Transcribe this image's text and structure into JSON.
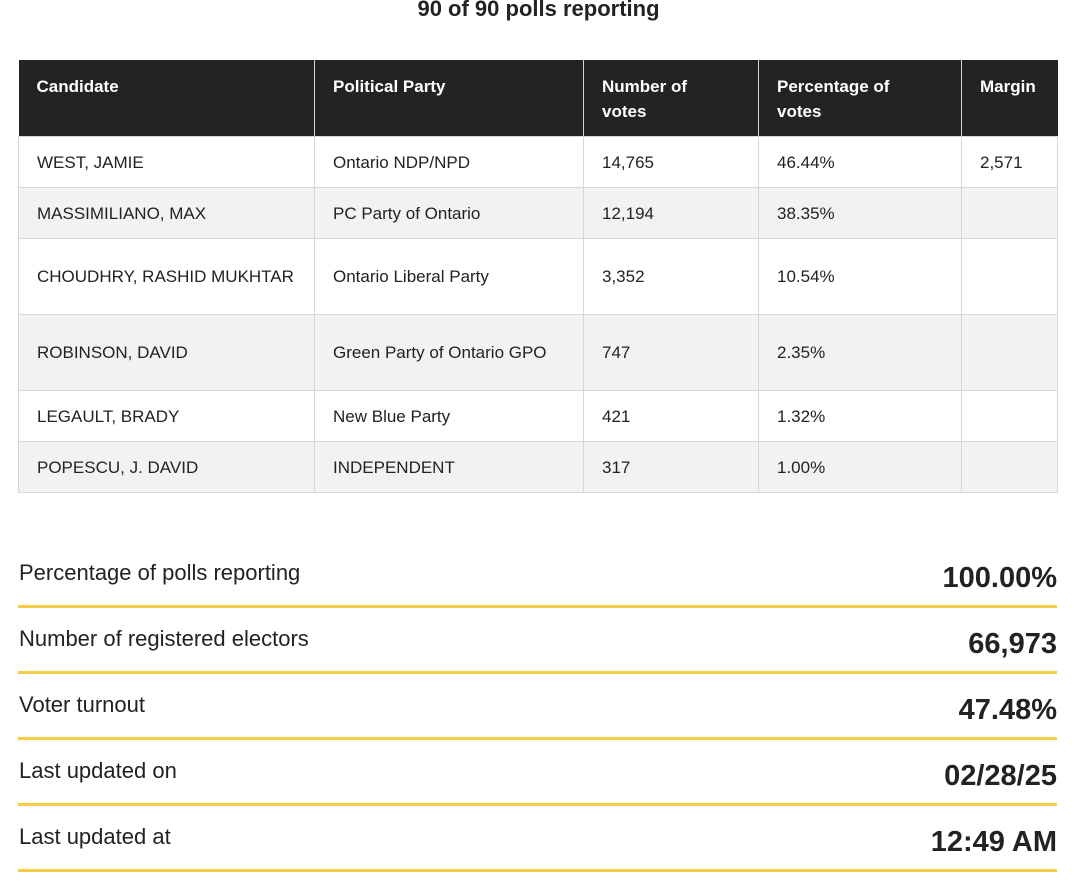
{
  "polls_heading": "90 of 90 polls reporting",
  "table": {
    "headers": {
      "candidate": "Candidate",
      "party": "Political Party",
      "votes_line1": "Number of",
      "votes_line2": "votes",
      "pct_line1": "Percentage of",
      "pct_line2": "votes",
      "margin": "Margin"
    },
    "rows": [
      {
        "candidate": "WEST, JAMIE",
        "party": "Ontario NDP/NPD",
        "votes": "14,765",
        "percentage": "46.44%",
        "margin": "2,571"
      },
      {
        "candidate": "MASSIMILIANO, MAX",
        "party": "PC Party of Ontario",
        "votes": "12,194",
        "percentage": "38.35%",
        "margin": ""
      },
      {
        "candidate": "CHOUDHRY, RASHID MUKHTAR",
        "party": "Ontario Liberal Party",
        "votes": "3,352",
        "percentage": "10.54%",
        "margin": ""
      },
      {
        "candidate": "ROBINSON, DAVID",
        "party": "Green Party of Ontario GPO",
        "votes": "747",
        "percentage": "2.35%",
        "margin": ""
      },
      {
        "candidate": "LEGAULT, BRADY",
        "party": "New Blue Party",
        "votes": "421",
        "percentage": "1.32%",
        "margin": ""
      },
      {
        "candidate": "POPESCU, J. DAVID",
        "party": "INDEPENDENT",
        "votes": "317",
        "percentage": "1.00%",
        "margin": ""
      }
    ]
  },
  "summary": [
    {
      "label": "Percentage of polls reporting",
      "value": "100.00%"
    },
    {
      "label": "Number of registered electors",
      "value": "66,973"
    },
    {
      "label": "Voter turnout",
      "value": "47.48%"
    },
    {
      "label": "Last updated on",
      "value": "02/28/25"
    },
    {
      "label": "Last updated at",
      "value": "12:49 AM"
    }
  ],
  "colors": {
    "header_bg": "#232323",
    "row_alt_bg": "#f2f2f2",
    "summary_underline": "#f5cf4a"
  }
}
